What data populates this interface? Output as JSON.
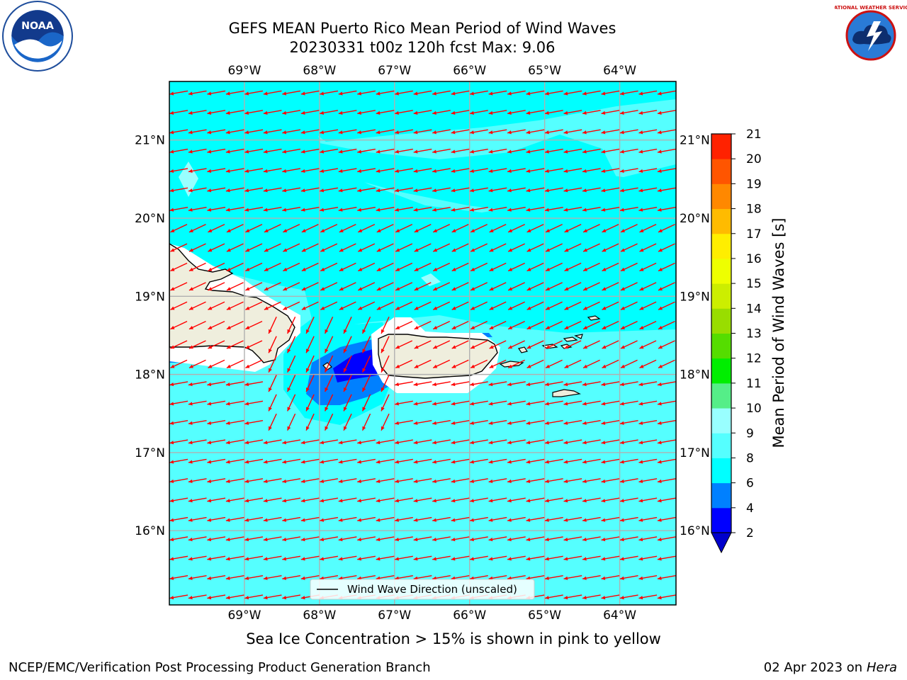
{
  "title": {
    "line1": "GEFS MEAN Puerto Rico Mean Period of Wind Waves",
    "line2": "20230331 t00z 120h fcst   Max: 9.06"
  },
  "logos": {
    "left": {
      "text": "NOAA",
      "icon": "noaa-logo"
    },
    "right": {
      "text": "NATIONAL WEATHER SERVICE",
      "icon": "nws-logo"
    }
  },
  "map": {
    "lon_labels": [
      "69°W",
      "68°W",
      "67°W",
      "66°W",
      "65°W",
      "64°W"
    ],
    "lon_values": [
      -69,
      -68,
      -67,
      -66,
      -65,
      -64
    ],
    "lat_labels": [
      "21°N",
      "20°N",
      "19°N",
      "18°N",
      "17°N",
      "16°N"
    ],
    "lat_values": [
      21,
      20,
      19,
      18,
      17,
      16
    ],
    "extent": {
      "lon_min": -70,
      "lon_max": -63.25,
      "lat_min": 15.05,
      "lat_max": 21.75
    },
    "ocean_color": "#00ffff",
    "land_color": "#efeedd",
    "arrow_color": "#ff0000",
    "legend_label": "Wind Wave Direction (unscaled)"
  },
  "colorbar": {
    "label": "Mean Period of Wind Waves [s]",
    "tick_labels": [
      "2",
      "4",
      "6",
      "8",
      "9",
      "10",
      "11",
      "12",
      "13",
      "14",
      "15",
      "16",
      "17",
      "18",
      "19",
      "20",
      "21"
    ],
    "colors": [
      "#0000ff",
      "#0080ff",
      "#00ffff",
      "#55ffff",
      "#99ffff",
      "#55ee88",
      "#00ee00",
      "#55dd00",
      "#99dd00",
      "#ccee00",
      "#eeff00",
      "#ffee00",
      "#ffbb00",
      "#ff8800",
      "#ff5500",
      "#ff2200"
    ],
    "extend_color": "#0000cc"
  },
  "bottom_note": "Sea Ice Concentration > 15% is shown in pink to yellow",
  "footer": {
    "left": "NCEP/EMC/Verification Post Processing Product Generation Branch",
    "right_date": "02 Apr 2023 on ",
    "right_host": "Hera"
  }
}
